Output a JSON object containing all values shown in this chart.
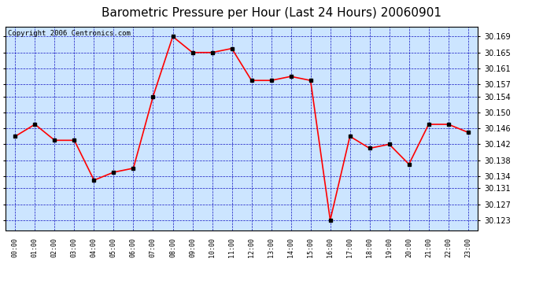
{
  "title": "Barometric Pressure per Hour (Last 24 Hours) 20060901",
  "copyright": "Copyright 2006 Centronics.com",
  "hours": [
    "00:00",
    "01:00",
    "02:00",
    "03:00",
    "04:00",
    "05:00",
    "06:00",
    "07:00",
    "08:00",
    "09:00",
    "10:00",
    "11:00",
    "12:00",
    "13:00",
    "14:00",
    "15:00",
    "16:00",
    "17:00",
    "18:00",
    "19:00",
    "20:00",
    "21:00",
    "22:00",
    "23:00"
  ],
  "values": [
    30.144,
    30.147,
    30.143,
    30.143,
    30.133,
    30.135,
    30.136,
    30.154,
    30.169,
    30.165,
    30.165,
    30.166,
    30.158,
    30.158,
    30.159,
    30.158,
    30.123,
    30.144,
    30.141,
    30.142,
    30.137,
    30.147,
    30.147,
    30.145
  ],
  "ylim_min": 30.1205,
  "ylim_max": 30.1715,
  "yticks": [
    30.123,
    30.127,
    30.131,
    30.134,
    30.138,
    30.142,
    30.146,
    30.15,
    30.154,
    30.157,
    30.161,
    30.165,
    30.169
  ],
  "line_color": "#ff0000",
  "marker_color": "#000000",
  "bg_color": "#ffffff",
  "plot_bg_color": "#cce5ff",
  "grid_color": "#0000bb",
  "title_color": "#000000",
  "title_fontsize": 11,
  "copyright_fontsize": 6.5
}
